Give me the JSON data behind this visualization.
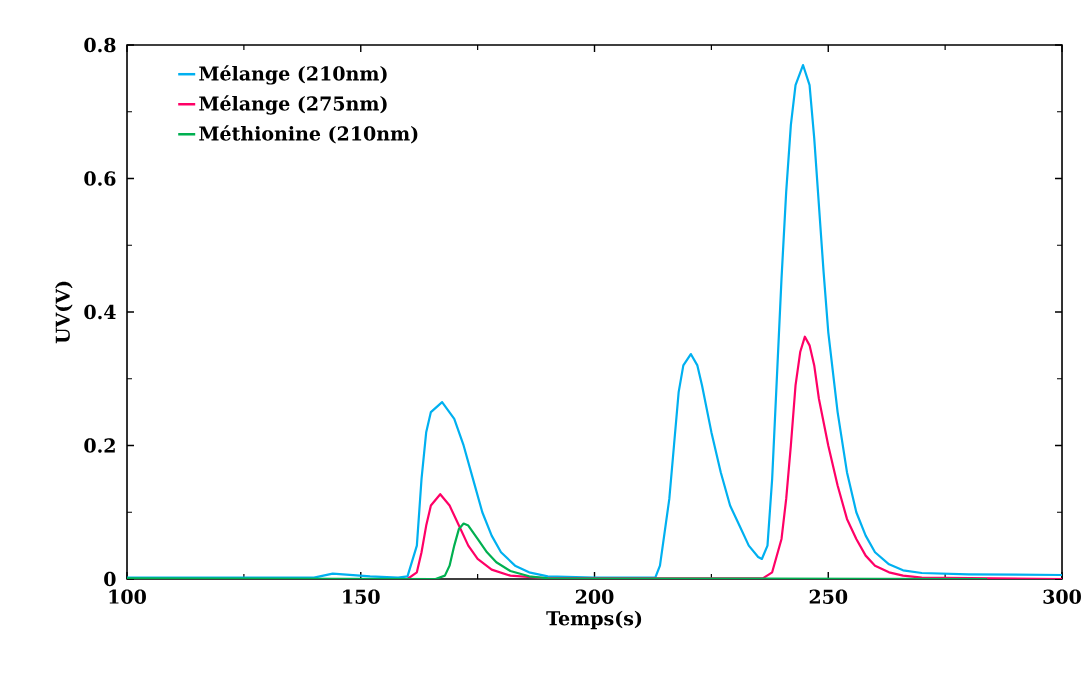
{
  "chart_data": {
    "type": "line",
    "xlabel": "Temps(s)",
    "ylabel": "UV(V)",
    "xlim": [
      100,
      300
    ],
    "ylim": [
      0,
      0.8
    ],
    "xticks": [
      100,
      150,
      200,
      250,
      300
    ],
    "yticks": [
      0,
      0.2,
      0.4,
      0.6,
      0.8
    ],
    "legend": "top left",
    "grid": false,
    "marker": "none",
    "line_style": "solid",
    "series": [
      {
        "name": "Mélange (210nm)",
        "color": "#00b0f0",
        "x": [
          100,
          140,
          144,
          148,
          152,
          158,
          160,
          162,
          163,
          164,
          165,
          167.4,
          170,
          172,
          174,
          176,
          178,
          180,
          183,
          186,
          190,
          200,
          213,
          214,
          216,
          217,
          218,
          219,
          220.6,
          222,
          223,
          225,
          227,
          229,
          231,
          233,
          235,
          235.8,
          237,
          238,
          239,
          240,
          241,
          242,
          243,
          244.6,
          246,
          247,
          248,
          249,
          250,
          252,
          254,
          256,
          258,
          260,
          263,
          266,
          270,
          280,
          300
        ],
        "values": [
          0.002,
          0.002,
          0.008,
          0.006,
          0.004,
          0.002,
          0.004,
          0.05,
          0.15,
          0.22,
          0.25,
          0.265,
          0.24,
          0.2,
          0.15,
          0.1,
          0.065,
          0.04,
          0.02,
          0.01,
          0.004,
          0.002,
          0.002,
          0.02,
          0.12,
          0.2,
          0.28,
          0.32,
          0.337,
          0.32,
          0.29,
          0.22,
          0.16,
          0.11,
          0.08,
          0.05,
          0.033,
          0.03,
          0.05,
          0.15,
          0.3,
          0.45,
          0.58,
          0.68,
          0.74,
          0.77,
          0.74,
          0.66,
          0.56,
          0.46,
          0.37,
          0.25,
          0.16,
          0.1,
          0.065,
          0.04,
          0.022,
          0.013,
          0.009,
          0.007,
          0.006
        ]
      },
      {
        "name": "Mélange (275nm)",
        "color": "#ff0066",
        "x": [
          100,
          160,
          162,
          163,
          164,
          165,
          167,
          169,
          171,
          173,
          175,
          178,
          182,
          190,
          236,
          238,
          240,
          241,
          242,
          243,
          244,
          245,
          246,
          247,
          248,
          250,
          252,
          254,
          256,
          258,
          260,
          263,
          266,
          270,
          300
        ],
        "values": [
          0,
          0,
          0.01,
          0.04,
          0.08,
          0.11,
          0.127,
          0.11,
          0.08,
          0.05,
          0.03,
          0.014,
          0.005,
          0.001,
          0.001,
          0.01,
          0.06,
          0.12,
          0.2,
          0.29,
          0.34,
          0.363,
          0.35,
          0.32,
          0.27,
          0.2,
          0.14,
          0.09,
          0.06,
          0.035,
          0.02,
          0.01,
          0.005,
          0.002,
          0
        ]
      },
      {
        "name": "Méthionine (210nm)",
        "color": "#00b050",
        "x": [
          100,
          166,
          168,
          169,
          170,
          171,
          172,
          173,
          175,
          177,
          179,
          182,
          186,
          190,
          284
        ],
        "values": [
          0.001,
          0,
          0.005,
          0.02,
          0.05,
          0.075,
          0.083,
          0.08,
          0.06,
          0.04,
          0.025,
          0.012,
          0.004,
          0.001,
          0
        ]
      }
    ]
  }
}
